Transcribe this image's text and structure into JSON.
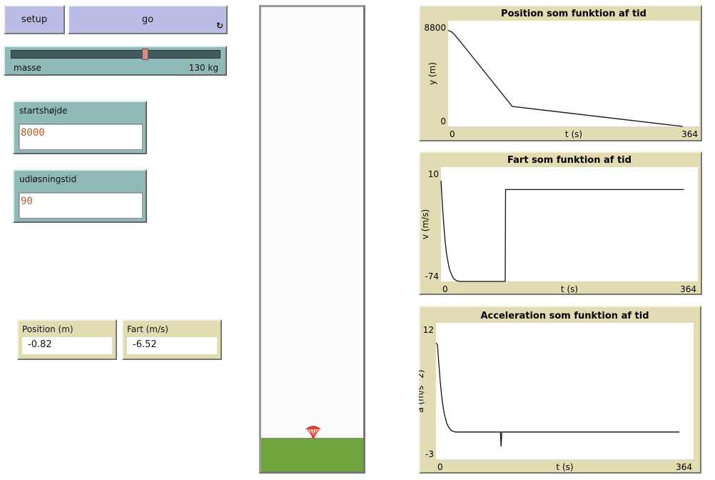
{
  "buttons": {
    "setup": "setup",
    "go": "go",
    "go_icon": "forever-loop-icon"
  },
  "slider": {
    "label": "masse",
    "value": 130,
    "unit": "kg",
    "display": "130 kg",
    "fraction": 0.64
  },
  "inputs": [
    {
      "label": "startshøjde",
      "value": "8000"
    },
    {
      "label": "udløsningstid",
      "value": "90"
    }
  ],
  "monitors": [
    {
      "label": "Position (m)",
      "value": "-0.82"
    },
    {
      "label": "Fart (m/s)",
      "value": "-6.52"
    }
  ],
  "world": {
    "sky_color": "#fbfcfc",
    "ground_color": "#6fa53e",
    "agent_color": "#d9432f",
    "agent_icon": "parachute-icon"
  },
  "chart_data": [
    {
      "type": "line",
      "title": "Position som funktion af tid",
      "xlabel": "t (s)",
      "ylabel": "y (m)",
      "xlim": [
        0,
        364
      ],
      "ylim": [
        0,
        8800
      ],
      "xticks": [
        "0",
        "364"
      ],
      "yticks": [
        "0",
        "8800"
      ],
      "points": [
        [
          0,
          8000
        ],
        [
          5,
          7880
        ],
        [
          10,
          7600
        ],
        [
          20,
          6900
        ],
        [
          93,
          1665
        ],
        [
          340,
          0
        ]
      ]
    },
    {
      "type": "line",
      "title": "Fart som funktion af tid",
      "xlabel": "t (s)",
      "ylabel": "v (m/s)",
      "xlim": [
        0,
        364
      ],
      "ylim": [
        -74,
        10
      ],
      "xticks": [
        "0",
        "364"
      ],
      "yticks": [
        "-74",
        "10"
      ],
      "points": [
        [
          0,
          0
        ],
        [
          2,
          -18
        ],
        [
          4,
          -33
        ],
        [
          6,
          -45
        ],
        [
          8,
          -54
        ],
        [
          10,
          -60
        ],
        [
          12,
          -65
        ],
        [
          15,
          -69
        ],
        [
          18,
          -72
        ],
        [
          22,
          -73.5
        ],
        [
          27,
          -74
        ],
        [
          91,
          -74
        ],
        [
          91.5,
          -6.5
        ],
        [
          344,
          -6.5
        ]
      ]
    },
    {
      "type": "line",
      "title": "Acceleration som funktion af tid",
      "xlabel": "t (s)",
      "ylabel": "a (m/s^2)",
      "xlim": [
        0,
        364
      ],
      "ylim": [
        -3,
        12
      ],
      "xticks": [
        "0",
        "364"
      ],
      "yticks": [
        "-3",
        "12"
      ],
      "points": [
        [
          0,
          9.8
        ],
        [
          2,
          9.6
        ],
        [
          4,
          7.5
        ],
        [
          6,
          5.5
        ],
        [
          8,
          4
        ],
        [
          10,
          2.8
        ],
        [
          12,
          1.9
        ],
        [
          15,
          1
        ],
        [
          18,
          0.5
        ],
        [
          22,
          0.15
        ],
        [
          27,
          0
        ],
        [
          91,
          0
        ],
        [
          92,
          -1.6
        ],
        [
          93,
          0
        ],
        [
          344,
          0
        ]
      ]
    }
  ]
}
